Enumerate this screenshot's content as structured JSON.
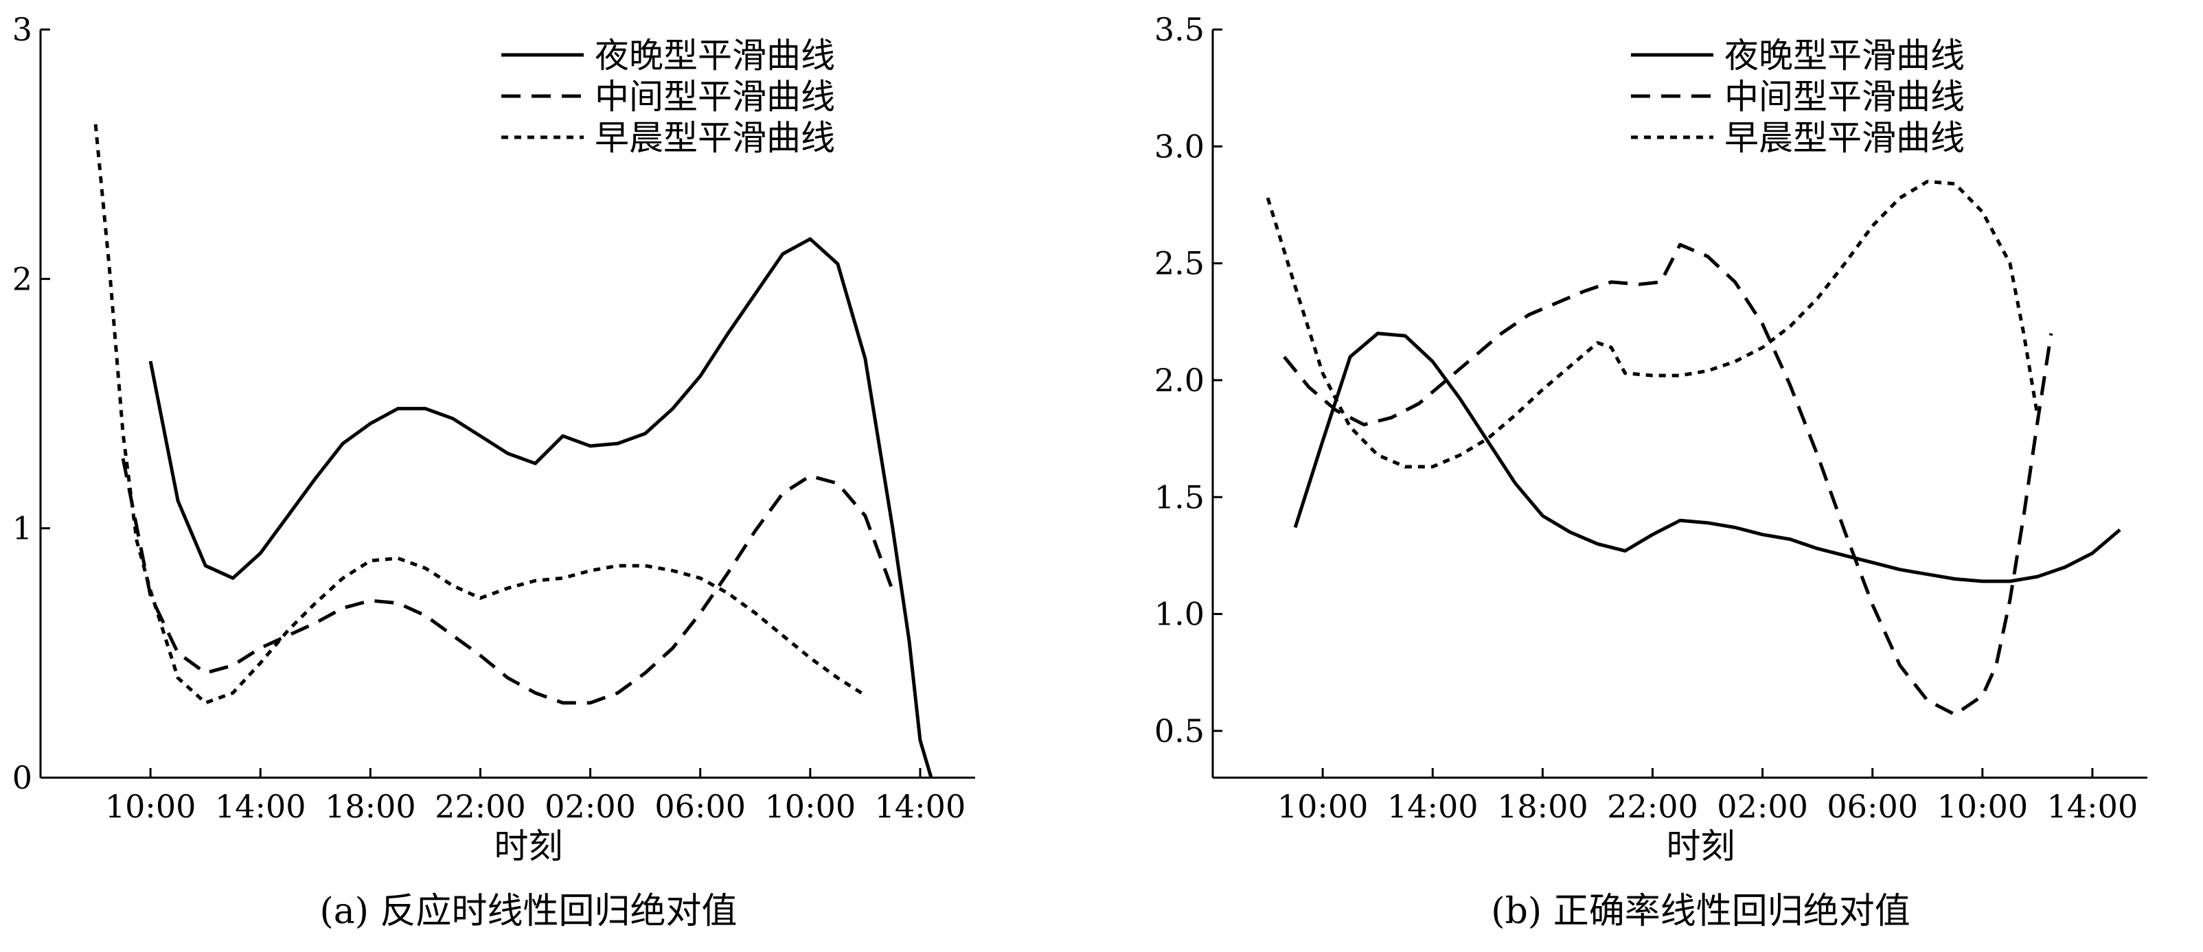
{
  "chart_data": [
    {
      "type": "line",
      "caption": "(a) 反应时线性回归绝对值",
      "xlabel": "时刻",
      "ylabel": "",
      "x_ticks": [
        "10:00",
        "14:00",
        "18:00",
        "22:00",
        "02:00",
        "06:00",
        "10:00",
        "14:00"
      ],
      "y_ticks": [
        "0",
        "1",
        "2",
        "3"
      ],
      "ylim": [
        0,
        3
      ],
      "xlim": [
        6,
        40
      ],
      "legend_position": "top-right",
      "series": [
        {
          "name": "夜晚型平滑曲线",
          "style": "solid",
          "x": [
            10,
            11,
            12,
            13,
            14,
            15,
            16,
            17,
            18,
            19,
            20,
            21,
            22,
            23,
            24,
            25,
            26,
            27,
            28,
            29,
            30,
            31,
            32,
            33,
            34,
            35,
            36,
            37,
            37.6,
            38,
            38.4
          ],
          "y": [
            1.67,
            1.11,
            0.85,
            0.8,
            0.9,
            1.05,
            1.2,
            1.34,
            1.42,
            1.48,
            1.48,
            1.44,
            1.37,
            1.3,
            1.26,
            1.37,
            1.33,
            1.34,
            1.38,
            1.48,
            1.61,
            1.78,
            1.94,
            2.1,
            2.16,
            2.06,
            1.68,
            1.0,
            0.55,
            0.15,
            0.0
          ]
        },
        {
          "name": "中间型平滑曲线",
          "style": "dashed",
          "x": [
            9,
            10,
            11,
            12,
            13,
            14,
            15,
            16,
            17,
            18,
            19,
            20,
            21,
            22,
            23,
            24,
            25,
            26,
            27,
            28,
            29,
            30,
            31,
            32,
            33,
            34,
            35,
            36,
            37
          ],
          "y": [
            1.28,
            0.73,
            0.5,
            0.42,
            0.45,
            0.52,
            0.57,
            0.62,
            0.68,
            0.71,
            0.7,
            0.65,
            0.57,
            0.49,
            0.4,
            0.34,
            0.3,
            0.3,
            0.34,
            0.42,
            0.52,
            0.66,
            0.82,
            0.99,
            1.14,
            1.21,
            1.18,
            1.05,
            0.75
          ]
        },
        {
          "name": "早晨型平滑曲线",
          "style": "dotted",
          "x": [
            8,
            8.5,
            9,
            9.5,
            10,
            11,
            12,
            13,
            14,
            15,
            16,
            17,
            18,
            19,
            20,
            21,
            22,
            23,
            24,
            25,
            26,
            27,
            28,
            29,
            30,
            31,
            32,
            33,
            34,
            35,
            36
          ],
          "y": [
            2.62,
            2.05,
            1.38,
            0.95,
            0.75,
            0.4,
            0.3,
            0.34,
            0.46,
            0.59,
            0.7,
            0.8,
            0.87,
            0.88,
            0.84,
            0.77,
            0.72,
            0.76,
            0.79,
            0.8,
            0.83,
            0.85,
            0.85,
            0.83,
            0.8,
            0.74,
            0.66,
            0.57,
            0.48,
            0.4,
            0.33
          ]
        }
      ]
    },
    {
      "type": "line",
      "caption": "(b) 正确率线性回归绝对值",
      "xlabel": "时刻",
      "ylabel": "",
      "x_ticks": [
        "10:00",
        "14:00",
        "18:00",
        "22:00",
        "02:00",
        "06:00",
        "10:00",
        "14:00"
      ],
      "y_ticks": [
        "0.5",
        "1.0",
        "1.5",
        "2.0",
        "2.5",
        "3.0",
        "3.5"
      ],
      "ylim": [
        0.3,
        3.5
      ],
      "xlim": [
        6,
        40
      ],
      "legend_position": "top-right",
      "series": [
        {
          "name": "夜晚型平滑曲线",
          "style": "solid",
          "x": [
            9,
            10,
            11,
            12,
            13,
            14,
            15,
            16,
            17,
            18,
            19,
            20,
            21,
            22,
            23,
            24,
            25,
            26,
            27,
            28,
            29,
            30,
            31,
            32,
            33,
            34,
            35,
            36,
            37,
            38,
            39
          ],
          "y": [
            1.37,
            1.74,
            2.1,
            2.2,
            2.19,
            2.08,
            1.92,
            1.74,
            1.56,
            1.42,
            1.35,
            1.3,
            1.27,
            1.34,
            1.4,
            1.39,
            1.37,
            1.34,
            1.32,
            1.28,
            1.25,
            1.22,
            1.19,
            1.17,
            1.15,
            1.14,
            1.14,
            1.16,
            1.2,
            1.26,
            1.36
          ]
        },
        {
          "name": "中间型平滑曲线",
          "style": "dashed",
          "x": [
            8.6,
            9.5,
            10.5,
            11.5,
            12.5,
            13.5,
            14.5,
            15.5,
            16.5,
            17.5,
            18.5,
            19.5,
            20.5,
            21.5,
            22.3,
            23,
            24,
            25,
            26,
            27,
            28,
            29,
            30,
            31,
            32,
            33,
            34,
            34.5,
            35,
            35.5,
            36,
            36.5
          ],
          "y": [
            2.1,
            1.97,
            1.87,
            1.81,
            1.84,
            1.9,
            2.0,
            2.1,
            2.2,
            2.28,
            2.33,
            2.38,
            2.42,
            2.41,
            2.42,
            2.58,
            2.53,
            2.42,
            2.24,
            1.98,
            1.68,
            1.35,
            1.04,
            0.78,
            0.63,
            0.57,
            0.65,
            0.78,
            1.06,
            1.42,
            1.82,
            2.2
          ]
        },
        {
          "name": "早晨型平滑曲线",
          "style": "dotted",
          "x": [
            8,
            9,
            10,
            11,
            12,
            13,
            14,
            15,
            16,
            17,
            18,
            19,
            20,
            20.5,
            21,
            22,
            23,
            24,
            25,
            26,
            27,
            28,
            29,
            30,
            31,
            32,
            33,
            34,
            35,
            35.5,
            36
          ],
          "y": [
            2.78,
            2.4,
            2.03,
            1.8,
            1.68,
            1.63,
            1.63,
            1.68,
            1.75,
            1.85,
            1.96,
            2.06,
            2.16,
            2.14,
            2.03,
            2.02,
            2.02,
            2.04,
            2.08,
            2.14,
            2.23,
            2.35,
            2.5,
            2.66,
            2.78,
            2.85,
            2.84,
            2.72,
            2.5,
            2.2,
            1.85
          ]
        }
      ]
    }
  ]
}
